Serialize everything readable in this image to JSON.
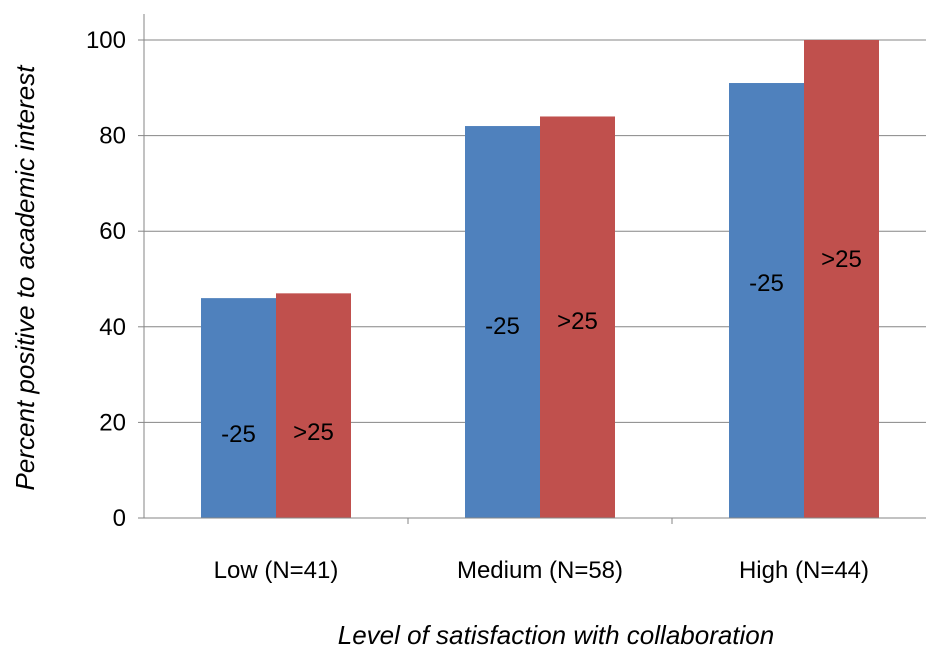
{
  "chart_data": {
    "type": "bar",
    "categories": [
      "Low (N=41)",
      "Medium (N=58)",
      "High (N=44)"
    ],
    "series": [
      {
        "label": "-25",
        "color": "#4f81bd",
        "values": [
          46,
          82,
          91
        ]
      },
      {
        "label": ">25",
        "color": "#c0504d",
        "values": [
          47,
          84,
          100
        ]
      }
    ],
    "xlabel": "Level of satisfaction with collaboration",
    "ylabel": "Percent positive to academic interest",
    "ylim": [
      0,
      100
    ],
    "yticks": [
      0,
      20,
      40,
      60,
      80,
      100
    ],
    "grid": true,
    "legend": "none"
  }
}
